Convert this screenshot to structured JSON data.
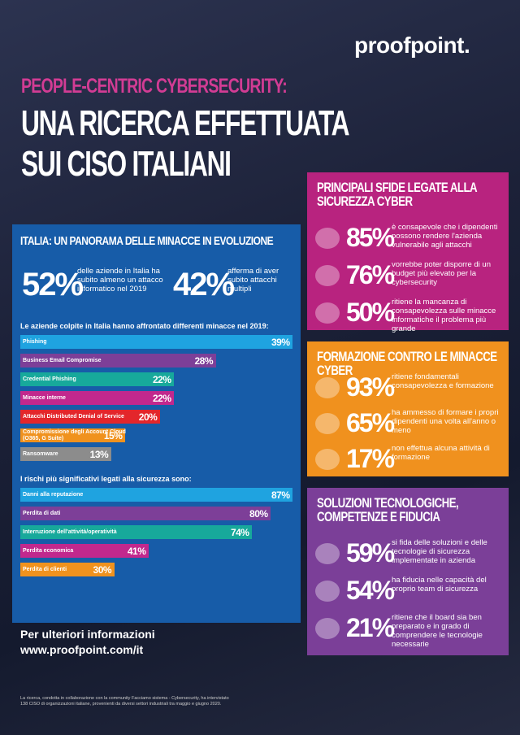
{
  "header": {
    "logo": "proofpoint.",
    "kicker": "PEOPLE-CENTRIC CYBERSECURITY:",
    "title_lines": [
      "UNA RICERCA EFFETTUATA",
      "SUI CISO ITALIANI"
    ]
  },
  "italy_panel": {
    "title": "ITALIA: UN PANORAMA DELLE MINACCE IN EVOLUZIONE",
    "stats": [
      {
        "value": "52%",
        "text": "delle aziende in Italia ha subito almeno un attacco informatico nel 2019"
      },
      {
        "value": "42%",
        "text": "afferma di aver subito attacchi multipli"
      }
    ]
  },
  "chart_data": [
    {
      "type": "bar",
      "orientation": "horizontal",
      "title": "Le aziende colpite in Italia hanno affrontato differenti minacce nel 2019:",
      "categories": [
        "Phishing",
        "Business Email Compromise",
        "Credential Phishing",
        "Minacce interne",
        "Attacchi Distributed Denial of Service",
        "Compromissione degli Account Cloud (O365, G Suite)",
        "Ransomware"
      ],
      "values": [
        39,
        28,
        22,
        22,
        20,
        15,
        13
      ],
      "value_labels": [
        "39%",
        "28%",
        "22%",
        "22%",
        "20%",
        "15%",
        "13%"
      ],
      "colors": [
        "#1fa3e0",
        "#7d3f98",
        "#17a99b",
        "#c2288d",
        "#e3262b",
        "#f0921e",
        "#8c8c8c"
      ],
      "xlim": [
        0,
        39
      ]
    },
    {
      "type": "bar",
      "orientation": "horizontal",
      "title": "I rischi più significativi legati alla sicurezza sono:",
      "categories": [
        "Danni alla reputazione",
        "Perdita di dati",
        "Interruzione dell'attività/operatività",
        "Perdita economica",
        "Perdita di clienti"
      ],
      "values": [
        87,
        80,
        74,
        41,
        30
      ],
      "value_labels": [
        "87%",
        "80%",
        "74%",
        "41%",
        "30%"
      ],
      "colors": [
        "#1fa3e0",
        "#7d3f98",
        "#17a99b",
        "#c2288d",
        "#f0921e"
      ],
      "xlim": [
        0,
        87
      ]
    }
  ],
  "panels": [
    {
      "title": "PRINCIPALI SFIDE LEGATE ALLA SICUREZZA CYBER",
      "rows": [
        {
          "value": "85%",
          "text": "è consapevole che i dipendenti possono rendere l'azienda vulnerabile agli attacchi"
        },
        {
          "value": "76%",
          "text": "vorrebbe poter disporre di un budget più elevato per la cybersecurity"
        },
        {
          "value": "50%",
          "text": "ritiene la mancanza di consapevolezza sulle minacce informatiche il problema più grande"
        }
      ]
    },
    {
      "title": "FORMAZIONE CONTRO LE MINACCE CYBER",
      "rows": [
        {
          "value": "93%",
          "text": "ritiene fondamentali consapevolezza e formazione"
        },
        {
          "value": "65%",
          "text": "ha ammesso di formare i propri dipendenti una volta all'anno o meno"
        },
        {
          "value": "17%",
          "text": "non effettua alcuna attività di formazione"
        }
      ]
    },
    {
      "title": "SOLUZIONI TECNOLOGICHE, COMPETENZE E FIDUCIA",
      "rows": [
        {
          "value": "59%",
          "text": "si fida delle soluzioni e delle tecnologie di sicurezza implementate in azienda"
        },
        {
          "value": "54%",
          "text": "ha fiducia nelle capacità del proprio team di sicurezza"
        },
        {
          "value": "21%",
          "text": "ritiene che il board sia ben preparato e in grado di comprendere le tecnologie necessarie"
        }
      ]
    }
  ],
  "footer": {
    "more_info": "Per ulteriori informazioni",
    "url": "www.proofpoint.com/it",
    "note": "La ricerca, condotta in collaborazione con la community Facciamo sistema - Cybersecurity, ha intervistato 138 CISO di organizzazioni italiane, provenienti da diversi settori industriali tra maggio e giugno 2020."
  }
}
